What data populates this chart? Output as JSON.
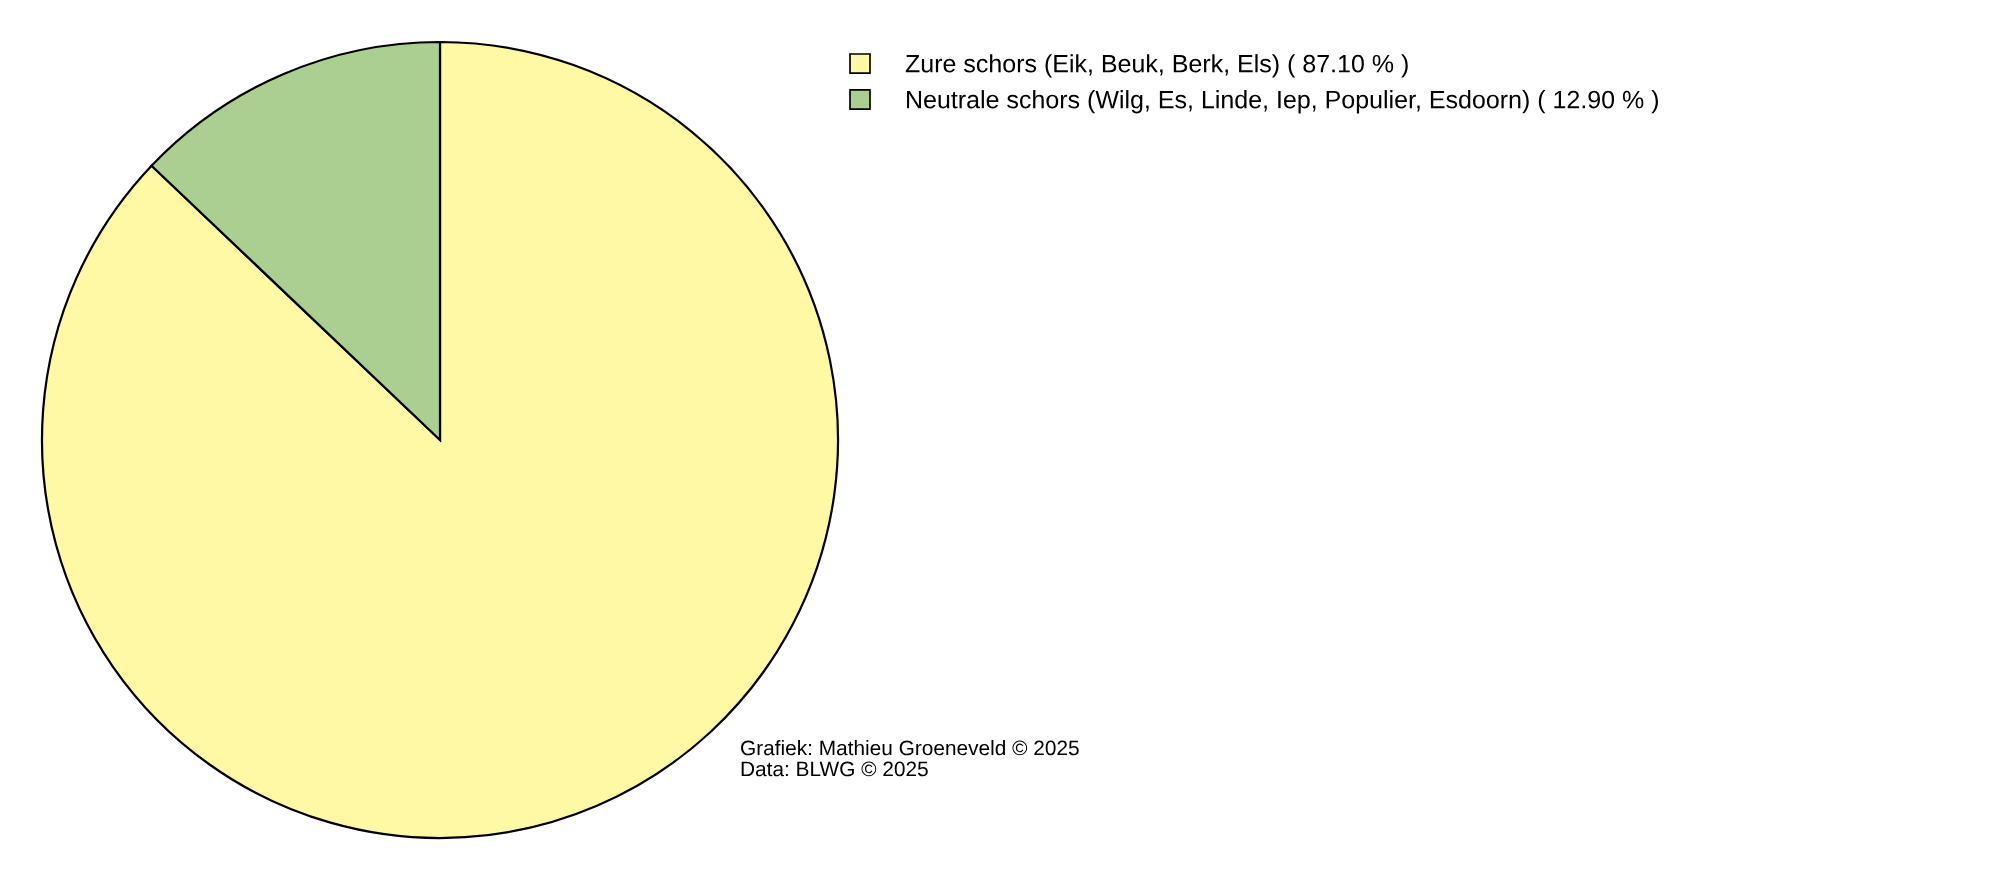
{
  "chart_data": {
    "type": "pie",
    "categories": [
      "Zure schors (Eik, Beuk, Berk, Els) ( 87.10 % )",
      "Neutrale schors (Wilg, Es, Linde, Iep, Populier, Esdoorn) ( 12.90 % )"
    ],
    "values": [
      87.1,
      12.9
    ],
    "colors": [
      "#fff8a5",
      "#abcf90"
    ],
    "legend": "top right",
    "annotations": [
      "Grafiek: Mathieu Groeneveld © 2025",
      "Data: BLWG © 2025"
    ]
  }
}
